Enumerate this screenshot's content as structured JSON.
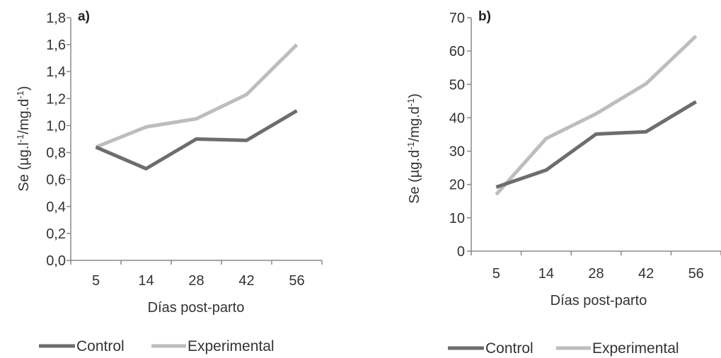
{
  "chart_data": [
    {
      "type": "line",
      "panel_label": "a)",
      "categories": [
        "5",
        "14",
        "28",
        "42",
        "56"
      ],
      "xlabel": "Días post-parto",
      "ylabel": {
        "base": "Se (µg.l",
        "sup1": "-1",
        "mid": "/mg.d",
        "sup2": "-1",
        "end": ")"
      },
      "ylim": [
        0,
        1.8
      ],
      "yticks": [
        "0,0",
        "0,2",
        "0,4",
        "0,6",
        "0,8",
        "1,0",
        "1,2",
        "1,4",
        "1,6",
        "1,8"
      ],
      "legend_position": "bottom",
      "series": [
        {
          "name": "Control",
          "color": "#6d6d6d",
          "values": [
            0.84,
            0.68,
            0.9,
            0.89,
            1.11
          ]
        },
        {
          "name": "Experimental",
          "color": "#bdbdbd",
          "values": [
            0.84,
            0.99,
            1.05,
            1.23,
            1.6
          ]
        }
      ]
    },
    {
      "type": "line",
      "panel_label": "b)",
      "categories": [
        "5",
        "14",
        "28",
        "42",
        "56"
      ],
      "xlabel": "Días post-parto",
      "ylabel": {
        "base": "Se (µg.d",
        "sup1": "-1",
        "mid": "/mg.d",
        "sup2": "-1",
        "end": ")"
      },
      "ylim": [
        0,
        70
      ],
      "yticks": [
        "0",
        "10",
        "20",
        "30",
        "40",
        "50",
        "60",
        "70"
      ],
      "legend_position": "bottom",
      "series": [
        {
          "name": "Control",
          "color": "#6d6d6d",
          "values": [
            19.2,
            24.3,
            35.1,
            35.8,
            44.8
          ]
        },
        {
          "name": "Experimental",
          "color": "#bdbdbd",
          "values": [
            17.0,
            33.8,
            41.2,
            50.2,
            64.5
          ]
        }
      ]
    }
  ]
}
